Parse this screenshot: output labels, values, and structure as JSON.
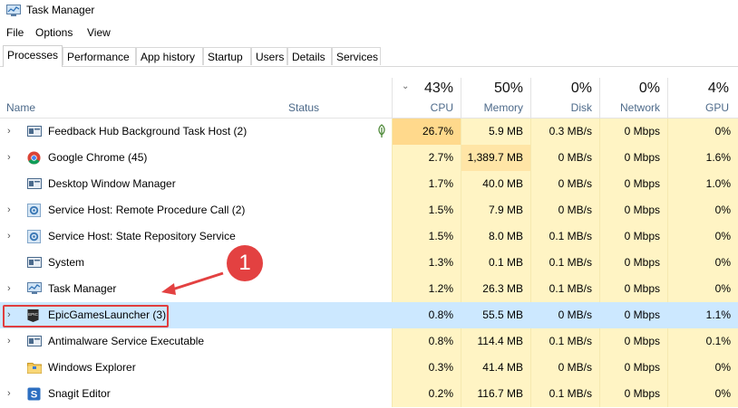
{
  "window": {
    "title": "Task Manager"
  },
  "menu": [
    "File",
    "Options",
    "View"
  ],
  "tabs": [
    "Processes",
    "Performance",
    "App history",
    "Startup",
    "Users",
    "Details",
    "Services"
  ],
  "columns": {
    "name": "Name",
    "status": "Status",
    "cpu": {
      "pct": "43%",
      "label": "CPU"
    },
    "memory": {
      "pct": "50%",
      "label": "Memory"
    },
    "disk": {
      "pct": "0%",
      "label": "Disk"
    },
    "network": {
      "pct": "0%",
      "label": "Network"
    },
    "gpu": {
      "pct": "4%",
      "label": "GPU"
    }
  },
  "processes": [
    {
      "name": "Feedback Hub Background Task Host (2)",
      "icon": "app-window-icon",
      "expandable": true,
      "cpu": "26.7%",
      "memory": "5.9 MB",
      "disk": "0.3 MB/s",
      "network": "0 Mbps",
      "gpu": "0%"
    },
    {
      "name": "Google Chrome (45)",
      "icon": "chrome-icon",
      "expandable": true,
      "cpu": "2.7%",
      "memory": "1,389.7 MB",
      "disk": "0 MB/s",
      "network": "0 Mbps",
      "gpu": "1.6%"
    },
    {
      "name": "Desktop Window Manager",
      "icon": "app-window-icon",
      "expandable": false,
      "cpu": "1.7%",
      "memory": "40.0 MB",
      "disk": "0 MB/s",
      "network": "0 Mbps",
      "gpu": "1.0%"
    },
    {
      "name": "Service Host: Remote Procedure Call (2)",
      "icon": "gear-icon",
      "expandable": true,
      "cpu": "1.5%",
      "memory": "7.9 MB",
      "disk": "0 MB/s",
      "network": "0 Mbps",
      "gpu": "0%"
    },
    {
      "name": "Service Host: State Repository Service",
      "icon": "gear-icon",
      "expandable": true,
      "cpu": "1.5%",
      "memory": "8.0 MB",
      "disk": "0.1 MB/s",
      "network": "0 Mbps",
      "gpu": "0%"
    },
    {
      "name": "System",
      "icon": "app-window-icon",
      "expandable": false,
      "cpu": "1.3%",
      "memory": "0.1 MB",
      "disk": "0.1 MB/s",
      "network": "0 Mbps",
      "gpu": "0%"
    },
    {
      "name": "Task Manager",
      "icon": "task-manager-icon",
      "expandable": true,
      "cpu": "1.2%",
      "memory": "26.3 MB",
      "disk": "0.1 MB/s",
      "network": "0 Mbps",
      "gpu": "0%"
    },
    {
      "name": "EpicGamesLauncher (3)",
      "icon": "epic-games-icon",
      "expandable": true,
      "cpu": "0.8%",
      "memory": "55.5 MB",
      "disk": "0 MB/s",
      "network": "0 Mbps",
      "gpu": "1.1%"
    },
    {
      "name": "Antimalware Service Executable",
      "icon": "app-window-icon",
      "expandable": true,
      "cpu": "0.8%",
      "memory": "114.4 MB",
      "disk": "0.1 MB/s",
      "network": "0 Mbps",
      "gpu": "0.1%"
    },
    {
      "name": "Windows Explorer",
      "icon": "folder-icon",
      "expandable": false,
      "cpu": "0.3%",
      "memory": "41.4 MB",
      "disk": "0 MB/s",
      "network": "0 Mbps",
      "gpu": "0%"
    },
    {
      "name": "Snagit Editor",
      "icon": "snagit-icon",
      "expandable": true,
      "cpu": "0.2%",
      "memory": "116.7 MB",
      "disk": "0.1 MB/s",
      "network": "0 Mbps",
      "gpu": "0%"
    }
  ],
  "status_icons": {
    "0": "leaf-icon"
  },
  "selected_row": "EpicGamesLauncher (3)",
  "annotation": {
    "number": "1"
  },
  "colors": {
    "selection": "#cce8ff",
    "heat_light": "#fff4c4",
    "heat_hot": "#ffd98c",
    "callout": "#e34141",
    "highlight_border": "#e03e3e"
  }
}
